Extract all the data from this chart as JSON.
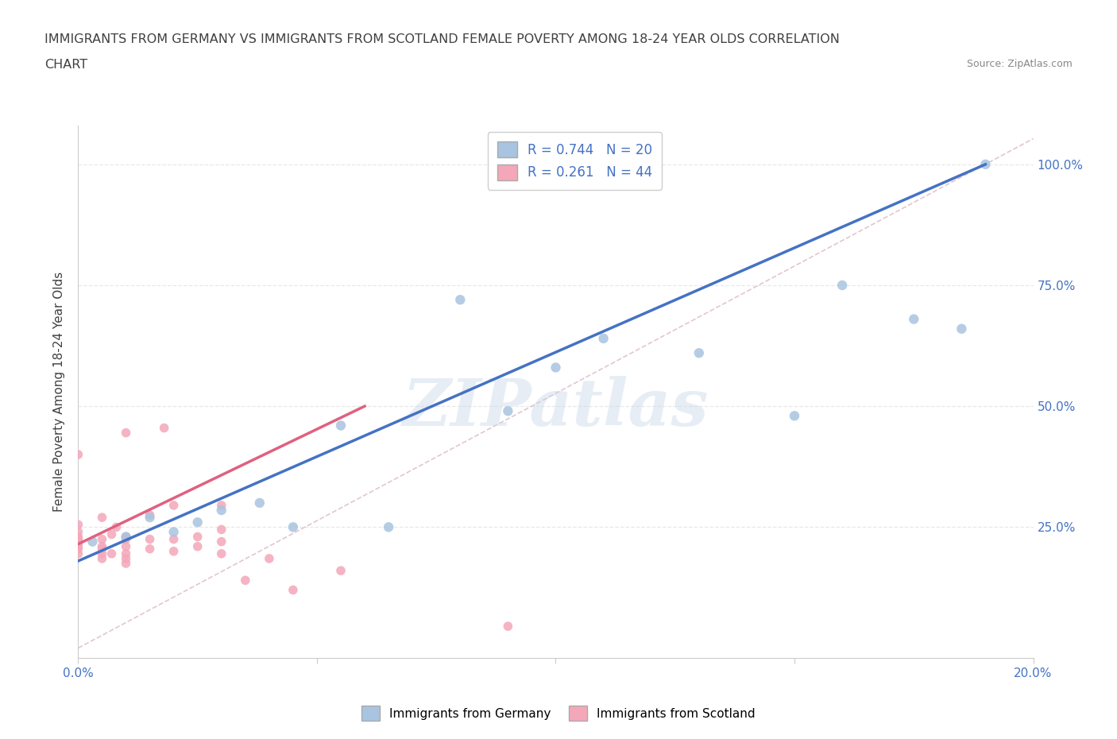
{
  "title_line1": "IMMIGRANTS FROM GERMANY VS IMMIGRANTS FROM SCOTLAND FEMALE POVERTY AMONG 18-24 YEAR OLDS CORRELATION",
  "title_line2": "CHART",
  "source": "Source: ZipAtlas.com",
  "ylabel": "Female Poverty Among 18-24 Year Olds",
  "xlim": [
    0.0,
    0.2
  ],
  "ylim": [
    -0.02,
    1.08
  ],
  "yticks": [
    0.25,
    0.5,
    0.75,
    1.0
  ],
  "ytick_labels": [
    "25.0%",
    "50.0%",
    "75.0%",
    "100.0%"
  ],
  "xticks": [
    0.0,
    0.05,
    0.1,
    0.15,
    0.2
  ],
  "xtick_labels": [
    "0.0%",
    "",
    "",
    "",
    "20.0%"
  ],
  "germany_color": "#a8c4e0",
  "scotland_color": "#f4a7b9",
  "germany_line_color": "#4472c4",
  "scotland_line_color": "#e06080",
  "diagonal_color": "#d0a0b0",
  "r_germany": 0.744,
  "n_germany": 20,
  "r_scotland": 0.261,
  "n_scotland": 44,
  "germany_x": [
    0.003,
    0.01,
    0.015,
    0.02,
    0.025,
    0.03,
    0.038,
    0.045,
    0.055,
    0.065,
    0.08,
    0.09,
    0.1,
    0.11,
    0.13,
    0.15,
    0.16,
    0.175,
    0.185,
    0.19
  ],
  "germany_y": [
    0.22,
    0.23,
    0.27,
    0.24,
    0.26,
    0.285,
    0.3,
    0.25,
    0.46,
    0.25,
    0.72,
    0.49,
    0.58,
    0.64,
    0.61,
    0.48,
    0.75,
    0.68,
    0.66,
    1.0
  ],
  "scotland_x": [
    0.0,
    0.0,
    0.0,
    0.0,
    0.0,
    0.0,
    0.0,
    0.0,
    0.0,
    0.0,
    0.005,
    0.005,
    0.005,
    0.005,
    0.005,
    0.005,
    0.007,
    0.007,
    0.008,
    0.01,
    0.01,
    0.01,
    0.01,
    0.01,
    0.01,
    0.01,
    0.015,
    0.015,
    0.015,
    0.018,
    0.02,
    0.02,
    0.02,
    0.025,
    0.025,
    0.03,
    0.03,
    0.03,
    0.03,
    0.035,
    0.04,
    0.045,
    0.055,
    0.09
  ],
  "scotland_y": [
    0.195,
    0.205,
    0.21,
    0.215,
    0.22,
    0.225,
    0.23,
    0.24,
    0.255,
    0.4,
    0.185,
    0.195,
    0.205,
    0.21,
    0.225,
    0.27,
    0.195,
    0.235,
    0.25,
    0.175,
    0.185,
    0.195,
    0.21,
    0.225,
    0.23,
    0.445,
    0.205,
    0.225,
    0.275,
    0.455,
    0.2,
    0.225,
    0.295,
    0.21,
    0.23,
    0.195,
    0.22,
    0.245,
    0.295,
    0.14,
    0.185,
    0.12,
    0.16,
    0.045
  ],
  "background_color": "#ffffff",
  "grid_color": "#e8e8e8",
  "watermark": "ZIPatlas",
  "title_color": "#404040",
  "axis_label_color": "#404040",
  "tick_label_color": "#4472c4",
  "germany_line_x": [
    0.0,
    0.19
  ],
  "germany_line_y": [
    0.18,
    1.0
  ],
  "scotland_line_x": [
    0.0,
    0.06
  ],
  "scotland_line_y": [
    0.215,
    0.5
  ]
}
